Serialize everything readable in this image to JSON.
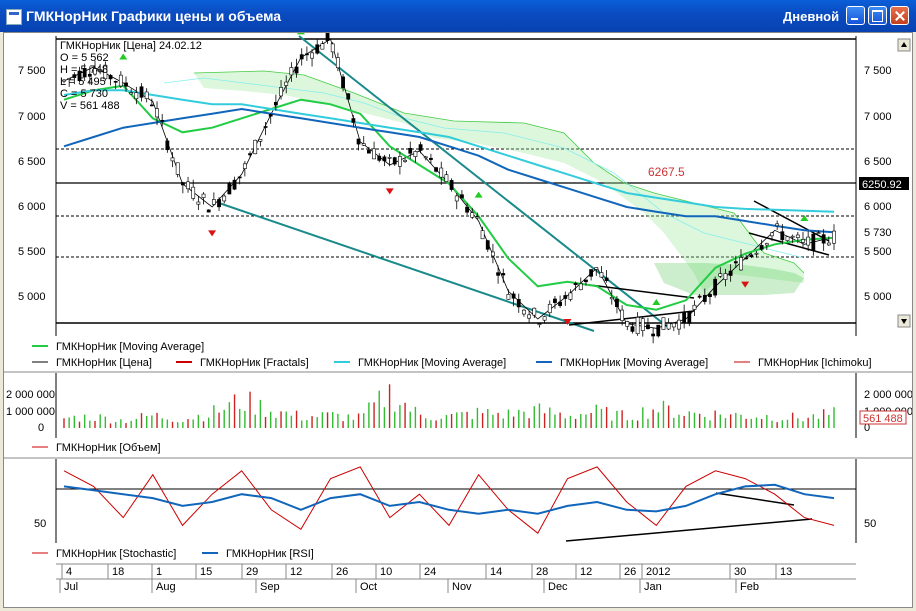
{
  "window": {
    "title": "ГМКНорНик Графики цены и объема",
    "period": "Дневной",
    "icon": "chart-window-icon"
  },
  "price_panel": {
    "ohlc_info": {
      "header": "ГМКНорНик [Цена] 24.02.12",
      "open": "O = 5 562",
      "high": "H = 5 748",
      "low": "L = 5 495",
      "close": "C = 5 730",
      "volume": "V = 561 488"
    },
    "y_ticks": [
      "7 500",
      "7 000",
      "6 500",
      "6 000",
      "5 500",
      "5 000"
    ],
    "price_tag": "6250.92",
    "close_tag": "5 730",
    "annotation": "6267.5",
    "legend": [
      {
        "label": "ГМКНорНик [Moving Average]",
        "color": "#22cc44"
      },
      {
        "label": "ГМКНорНик [Цена]",
        "color": "#000000"
      },
      {
        "label": "ГМКНорНик [Fractals]",
        "color": "#cc0000"
      },
      {
        "label": "ГМКНорНик [Moving Average]",
        "color": "#33ccdd"
      },
      {
        "label": "ГМКНорНик [Moving Average]",
        "color": "#1166bb"
      },
      {
        "label": "ГМКНорНик [Ichimoku]",
        "color": "#cc0000"
      }
    ]
  },
  "volume_panel": {
    "y_ticks_left": [
      "2 000 000",
      "1 000 000",
      "0"
    ],
    "y_ticks_right": [
      "2 000 000",
      "1 000 000",
      "0"
    ],
    "volume_tag": "561 488",
    "legend": [
      {
        "label": "ГМКНорНик [Объем]",
        "color": "#cc0000"
      }
    ]
  },
  "oscillator_panel": {
    "y_tick_left": "50",
    "y_tick_right": "50",
    "legend": [
      {
        "label": "ГМКНорНик [Stochastic]",
        "color": "#cc0000"
      },
      {
        "label": "ГМКНорНик [RSI]",
        "color": "#1166bb"
      }
    ]
  },
  "time_axis": {
    "days": [
      "4",
      "18",
      "1",
      "15",
      "29",
      "12",
      "26",
      "10",
      "24",
      "14",
      "28",
      "12",
      "26",
      "2012",
      "30",
      "13"
    ],
    "months": [
      "Jul",
      "Aug",
      "Sep",
      "Oct",
      "Nov",
      "Dec",
      "Jan",
      "Feb"
    ]
  },
  "chart_data": {
    "type": "line",
    "series": [
      {
        "name": "ГМКНорНик [Цена]",
        "values": [
          7400,
          7550,
          7380,
          7180,
          6300,
          6050,
          6400,
          7050,
          7650,
          7850,
          6750,
          6500,
          6650,
          6300,
          5900,
          5150,
          4850,
          5100,
          5400,
          4800,
          4750,
          4850,
          5200,
          5500,
          5800,
          5650,
          5730
        ]
      },
      {
        "name": "ГМКНорНик [Moving Average]",
        "values": [
          7200,
          7300,
          7350,
          7000,
          6850,
          6900,
          7000,
          7100,
          7200,
          7150,
          7050,
          6700,
          6500,
          6300,
          5950,
          5500,
          5200,
          5250,
          5200,
          5000,
          4950,
          5050,
          5400,
          5550,
          5650,
          5700,
          5720
        ]
      },
      {
        "name": "ГМКНорНик [Moving Average]",
        "values": [
          6700,
          6800,
          6900,
          6950,
          7000,
          7050,
          7100,
          7050,
          7000,
          6950,
          6900,
          6850,
          6800,
          6700,
          6600,
          6450,
          6350,
          6250,
          6150,
          6050,
          6000,
          5950,
          5950,
          5900,
          5850,
          5800,
          5780
        ]
      },
      {
        "name": "ГМКНорНик [Moving Average]",
        "values": [
          7250,
          7300,
          7300,
          7250,
          7200,
          7150,
          7150,
          7100,
          7050,
          7000,
          6950,
          6900,
          6850,
          6800,
          6700,
          6600,
          6500,
          6400,
          6300,
          6200,
          6150,
          6100,
          6050,
          6030,
          6020,
          6010,
          6000
        ]
      }
    ],
    "ylim": [
      4700,
      7850
    ],
    "volume": [
      400,
      450,
      300,
      500,
      350,
      600,
      1100,
      700,
      450,
      500,
      400,
      1400,
      500,
      450,
      600,
      550,
      700,
      500,
      650,
      450,
      800,
      600,
      550,
      500,
      450,
      400,
      561
    ],
    "stochastic": [
      90,
      70,
      30,
      85,
      20,
      60,
      90,
      40,
      15,
      80,
      95,
      30,
      60,
      20,
      85,
      40,
      10,
      80,
      95,
      50,
      20,
      70,
      90,
      80,
      60,
      30,
      20
    ],
    "rsi": [
      70,
      65,
      60,
      55,
      45,
      50,
      60,
      55,
      40,
      55,
      60,
      45,
      50,
      40,
      35,
      40,
      35,
      45,
      50,
      40,
      38,
      45,
      60,
      70,
      72,
      60,
      55
    ]
  }
}
